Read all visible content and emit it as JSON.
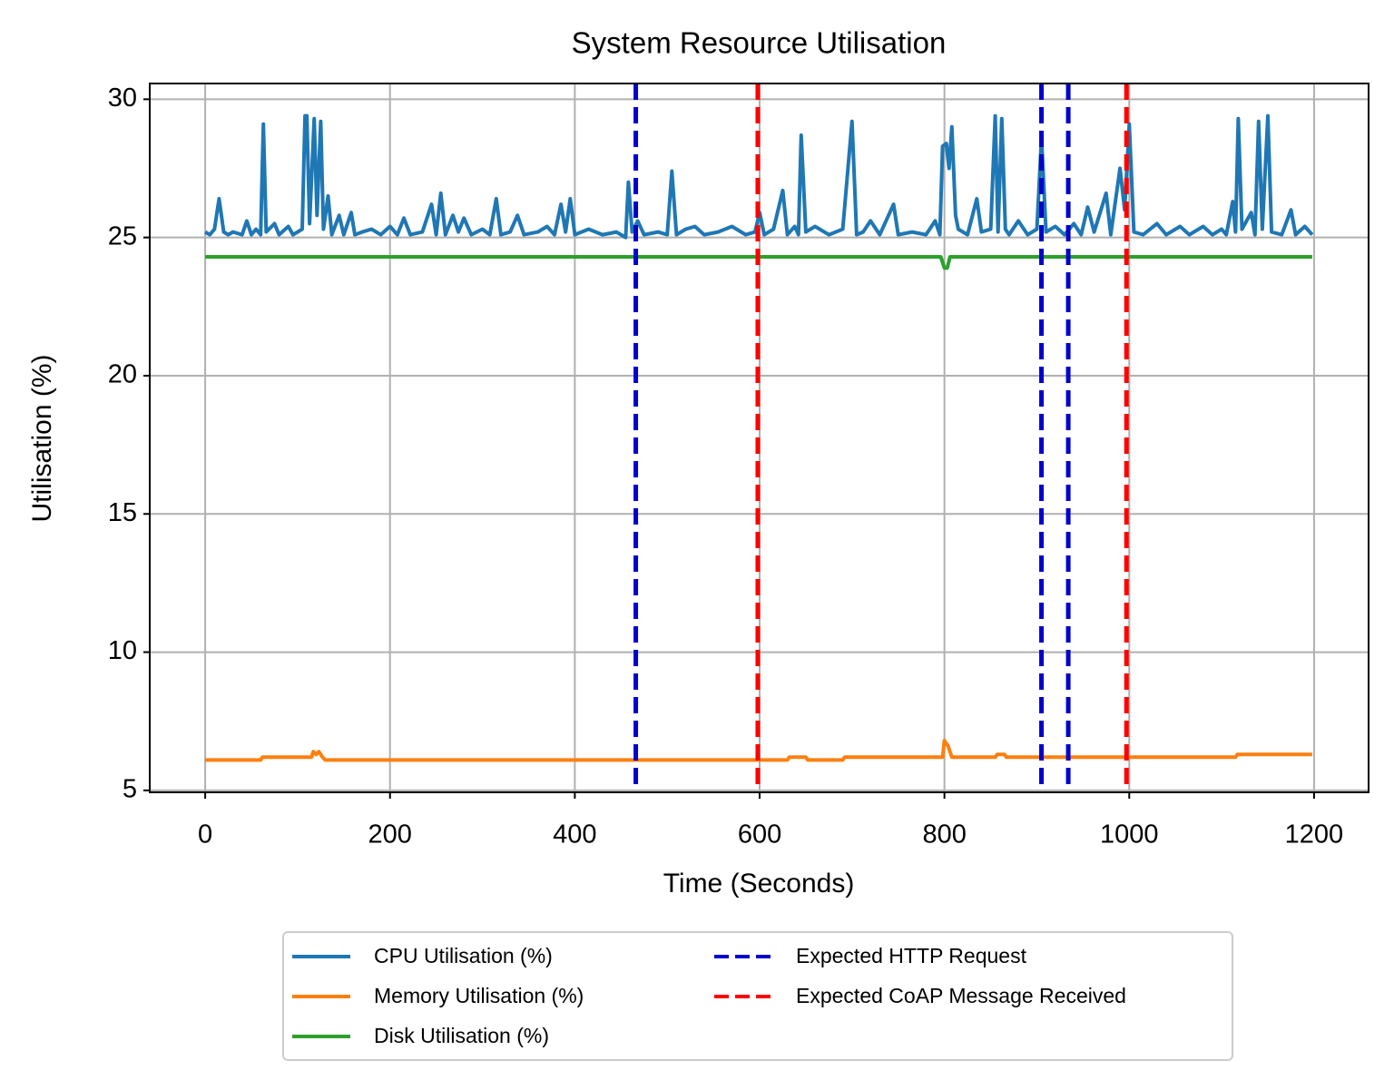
{
  "chart_data": {
    "type": "line",
    "title": "System Resource Utilisation",
    "x_label": "Time (Seconds)",
    "y_label": "Utilisation (%)",
    "xlim": [
      -60,
      1259
    ],
    "ylim": [
      4.93,
      30.57
    ],
    "xticks": [
      0,
      200,
      400,
      600,
      800,
      1000,
      1200
    ],
    "yticks": [
      5,
      10,
      15,
      20,
      25,
      30
    ],
    "grid": true,
    "legend_position": "below",
    "legend_columns": 2,
    "series": [
      {
        "name": "CPU Utilisation (%)",
        "color": "#1f77b4",
        "x": [
          0,
          5,
          10,
          15,
          20,
          25,
          30,
          40,
          45,
          50,
          55,
          60,
          63,
          66,
          75,
          80,
          90,
          95,
          100,
          105,
          108,
          110,
          113,
          118,
          121,
          125,
          128,
          133,
          137,
          145,
          150,
          158,
          162,
          170,
          180,
          190,
          200,
          208,
          215,
          222,
          235,
          245,
          250,
          255,
          260,
          268,
          274,
          280,
          288,
          300,
          308,
          315,
          320,
          330,
          338,
          345,
          360,
          370,
          378,
          385,
          390,
          395,
          400,
          415,
          430,
          445,
          455,
          458,
          462,
          468,
          475,
          490,
          500,
          505,
          510,
          520,
          530,
          540,
          555,
          570,
          585,
          595,
          600,
          605,
          615,
          625,
          630,
          638,
          642,
          645,
          650,
          660,
          675,
          690,
          700,
          705,
          712,
          720,
          730,
          745,
          750,
          765,
          780,
          790,
          795,
          798,
          802,
          805,
          808,
          812,
          815,
          825,
          835,
          840,
          850,
          855,
          858,
          862,
          866,
          870,
          880,
          890,
          900,
          905,
          910,
          920,
          930,
          940,
          948,
          955,
          962,
          975,
          980,
          990,
          995,
          1000,
          1005,
          1015,
          1030,
          1040,
          1055,
          1065,
          1080,
          1090,
          1100,
          1105,
          1112,
          1115,
          1118,
          1122,
          1132,
          1136,
          1140,
          1144,
          1150,
          1154,
          1165,
          1175,
          1180,
          1190,
          1198
        ],
        "values": [
          25.2,
          25.1,
          25.3,
          26.4,
          25.2,
          25.1,
          25.2,
          25.1,
          25.6,
          25.1,
          25.3,
          25.1,
          29.1,
          25.2,
          25.5,
          25.1,
          25.4,
          25.1,
          25.2,
          25.3,
          29.4,
          29.4,
          25.5,
          29.3,
          25.8,
          29.2,
          25.3,
          26.5,
          25.1,
          25.8,
          25.1,
          25.9,
          25.1,
          25.2,
          25.3,
          25.1,
          25.4,
          25.1,
          25.7,
          25.1,
          25.2,
          26.2,
          25.1,
          26.6,
          25.1,
          25.8,
          25.2,
          25.7,
          25.1,
          25.3,
          25.1,
          26.4,
          25.1,
          25.2,
          25.8,
          25.1,
          25.2,
          25.4,
          25.1,
          26.2,
          25.2,
          26.4,
          25.1,
          25.3,
          25.1,
          25.2,
          25.0,
          27.0,
          25.2,
          25.6,
          25.1,
          25.2,
          25.1,
          27.4,
          25.1,
          25.3,
          25.4,
          25.1,
          25.2,
          25.4,
          25.1,
          25.2,
          25.9,
          25.1,
          25.3,
          26.7,
          25.1,
          25.4,
          25.1,
          28.7,
          25.2,
          25.4,
          25.1,
          25.3,
          29.2,
          25.1,
          25.2,
          25.6,
          25.1,
          26.2,
          25.1,
          25.2,
          25.1,
          25.6,
          25.1,
          28.3,
          28.4,
          27.5,
          29.0,
          25.8,
          25.3,
          25.1,
          26.4,
          25.2,
          25.3,
          29.4,
          25.2,
          29.3,
          25.3,
          25.1,
          25.6,
          25.1,
          25.3,
          28.6,
          25.2,
          25.4,
          25.1,
          25.5,
          25.1,
          26.1,
          25.2,
          26.6,
          25.1,
          27.5,
          26.0,
          29.1,
          25.2,
          25.1,
          25.5,
          25.1,
          25.4,
          25.1,
          25.4,
          25.1,
          25.3,
          25.1,
          26.3,
          25.2,
          29.3,
          25.3,
          25.9,
          25.1,
          29.2,
          25.3,
          29.4,
          25.2,
          25.1,
          26.0,
          25.1,
          25.4,
          25.1
        ]
      },
      {
        "name": "Memory Utilisation (%)",
        "color": "#ff7f0e",
        "x": [
          0,
          60,
          62,
          115,
          117,
          120,
          123,
          127,
          130,
          630,
          632,
          650,
          652,
          690,
          692,
          798,
          800,
          804,
          808,
          855,
          857,
          865,
          867,
          1115,
          1117,
          1198
        ],
        "values": [
          6.1,
          6.1,
          6.2,
          6.2,
          6.4,
          6.3,
          6.4,
          6.2,
          6.1,
          6.1,
          6.2,
          6.2,
          6.1,
          6.1,
          6.2,
          6.2,
          6.8,
          6.6,
          6.2,
          6.2,
          6.3,
          6.3,
          6.2,
          6.2,
          6.3,
          6.3
        ]
      },
      {
        "name": "Disk Utilisation (%)",
        "color": "#2ca02c",
        "x": [
          0,
          796,
          800,
          803,
          806,
          1198
        ],
        "values": [
          24.3,
          24.3,
          23.9,
          23.9,
          24.3,
          24.3
        ]
      }
    ],
    "vertical_lines": [
      {
        "name": "Expected HTTP Request",
        "color": "#0000cc",
        "style": "dashed",
        "x": [
          466,
          905,
          934
        ]
      },
      {
        "name": "Expected CoAP Message Received",
        "color": "#ff0000",
        "style": "dashed",
        "x": [
          598,
          997
        ]
      }
    ]
  }
}
